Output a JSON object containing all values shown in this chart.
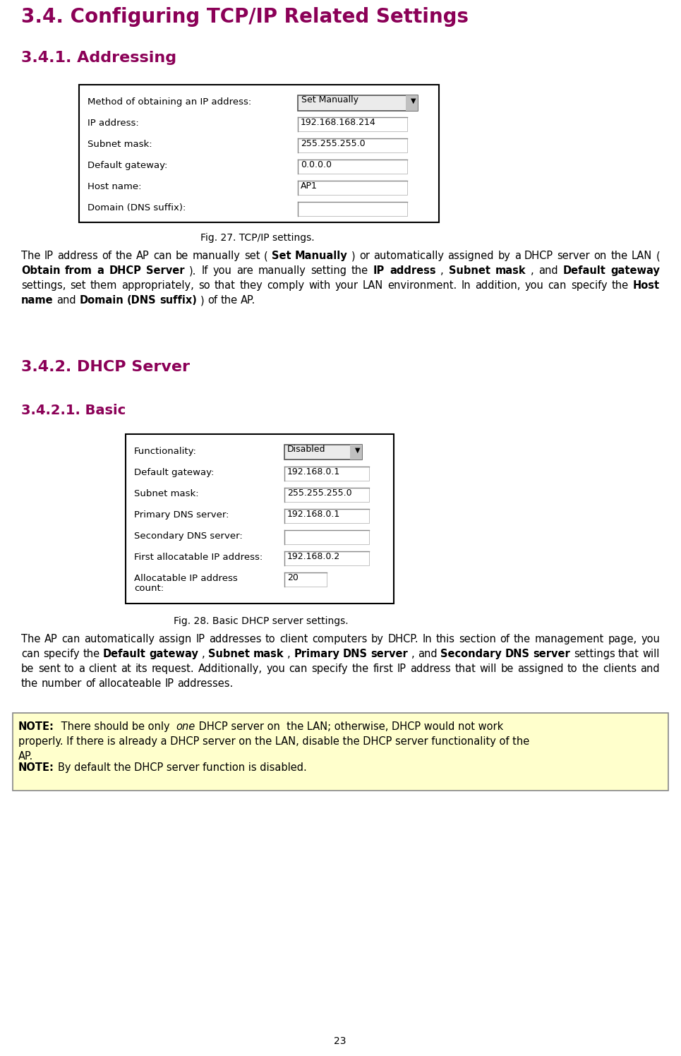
{
  "title1": "3.4. Configuring TCP/IP Related Settings",
  "title2": "3.4.1. Addressing",
  "title3": "3.4.2. DHCP Server",
  "title4": "3.4.2.1. Basic",
  "heading_color": "#8B0057",
  "fig27_caption": "Fig. 27. TCP/IP settings.",
  "fig28_caption": "Fig. 28. Basic DHCP server settings.",
  "page_num": "23",
  "bg_color": "#ffffff",
  "table1_rows": [
    [
      "Method of obtaining an IP address:",
      "Set Manually",
      true
    ],
    [
      "IP address:",
      "192.168.168.214",
      false
    ],
    [
      "Subnet mask:",
      "255.255.255.0",
      false
    ],
    [
      "Default gateway:",
      "0.0.0.0",
      false
    ],
    [
      "Host name:",
      "AP1",
      false
    ],
    [
      "Domain (DNS suffix):",
      "",
      false
    ]
  ],
  "table2_rows": [
    [
      "Functionality:",
      "Disabled",
      true
    ],
    [
      "Default gateway:",
      "192.168.0.1",
      false
    ],
    [
      "Subnet mask:",
      "255.255.255.0",
      false
    ],
    [
      "Primary DNS server:",
      "192.168.0.1",
      false
    ],
    [
      "Secondary DNS server:",
      "",
      false
    ],
    [
      "First allocatable IP address:",
      "192.168.0.2",
      false
    ],
    [
      "Allocatable IP address\ncount:",
      "20",
      false
    ]
  ],
  "para1_segments": [
    [
      "The IP address of the AP can be manually set (",
      false
    ],
    [
      "Set Manually",
      true
    ],
    [
      ") or automatically assigned by a DHCP server on the LAN (",
      false
    ],
    [
      "Obtain from a DHCP  Server",
      true
    ],
    [
      "). If you are manually setting the  ",
      false
    ],
    [
      "IP address",
      true
    ],
    [
      ", ",
      false
    ],
    [
      "Subnet mask",
      true
    ],
    [
      ", and ",
      false
    ],
    [
      "Default gateway",
      true
    ],
    [
      " settings, set them appropriately, so that they comply with your LAN environment. In addition, you can specify the ",
      false
    ],
    [
      "Host name",
      true
    ],
    [
      " and ",
      false
    ],
    [
      "Domain (DNS suffix)",
      true
    ],
    [
      ") of the AP.",
      false
    ]
  ],
  "para2_segments": [
    [
      "The AP can automatically assign IP addresses to client computers by DHCP. In this section of the management page, you can specify the ",
      false
    ],
    [
      "Default gateway",
      true
    ],
    [
      ", ",
      false
    ],
    [
      "Subnet mask",
      true
    ],
    [
      ", ",
      false
    ],
    [
      "Primary DNS server",
      true
    ],
    [
      ", and ",
      false
    ],
    [
      "Secondary DNS server",
      true
    ],
    [
      " settings that will be sent to a client at its request. Additionally, you can specify the first IP address that will be assigned to the clients and the number of allocateable IP addresses.",
      false
    ]
  ],
  "note1_segments": [
    [
      "NOTE:",
      true
    ],
    [
      " There should be only  ",
      false
    ],
    [
      "one",
      false
    ],
    [
      " DHCP server on  the LAN; otherwise, DHCP would not work properly. If there is already a DHCP server on the LAN, disable the DHCP server functionality of the AP.",
      false
    ]
  ],
  "note1_italic_idx": 2,
  "note2_segments": [
    [
      "NOTE:",
      true
    ],
    [
      " By default the DHCP server function is disabled.",
      false
    ]
  ]
}
